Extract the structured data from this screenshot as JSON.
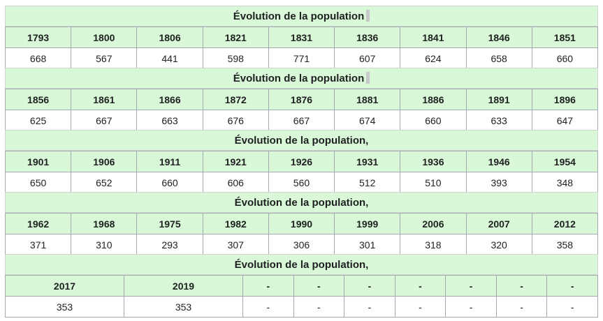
{
  "sections": [
    {
      "title": "Évolution de la population",
      "years": [
        "1793",
        "1800",
        "1806",
        "1821",
        "1831",
        "1836",
        "1841",
        "1846",
        "1851"
      ],
      "values": [
        "668",
        "567",
        "441",
        "598",
        "771",
        "607",
        "624",
        "658",
        "660"
      ]
    },
    {
      "title": "Évolution de la population",
      "years": [
        "1856",
        "1861",
        "1866",
        "1872",
        "1876",
        "1881",
        "1886",
        "1891",
        "1896"
      ],
      "values": [
        "625",
        "667",
        "663",
        "676",
        "667",
        "674",
        "660",
        "633",
        "647"
      ]
    },
    {
      "title": "Évolution de la population,",
      "years": [
        "1901",
        "1906",
        "1911",
        "1921",
        "1926",
        "1931",
        "1936",
        "1946",
        "1954"
      ],
      "values": [
        "650",
        "652",
        "660",
        "606",
        "560",
        "512",
        "510",
        "393",
        "348"
      ]
    },
    {
      "title": "Évolution de la population,",
      "years": [
        "1962",
        "1968",
        "1975",
        "1982",
        "1990",
        "1999",
        "2006",
        "2007",
        "2012"
      ],
      "values": [
        "371",
        "310",
        "293",
        "307",
        "306",
        "301",
        "318",
        "320",
        "358"
      ]
    },
    {
      "title": "Évolution de la population,",
      "years": [
        "2017",
        "2019",
        "-",
        "-",
        "-",
        "-",
        "-",
        "-",
        "-"
      ],
      "values": [
        "353",
        "353",
        "-",
        "-",
        "-",
        "-",
        "-",
        "-",
        "-"
      ]
    }
  ]
}
